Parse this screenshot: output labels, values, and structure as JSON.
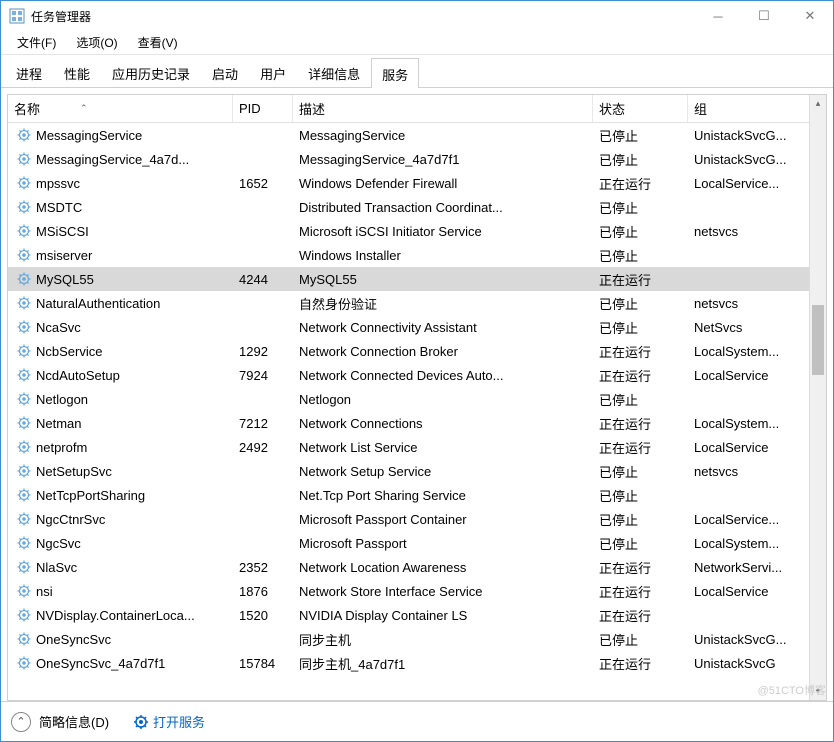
{
  "window": {
    "title": "任务管理器"
  },
  "menus": [
    "文件(F)",
    "选项(O)",
    "查看(V)"
  ],
  "tabs": [
    "进程",
    "性能",
    "应用历史记录",
    "启动",
    "用户",
    "详细信息",
    "服务"
  ],
  "activeTab": 6,
  "columns": {
    "name": "名称",
    "pid": "PID",
    "desc": "描述",
    "status": "状态",
    "group": "组"
  },
  "statusbar": {
    "fewer": "简略信息(D)",
    "open": "打开服务"
  },
  "watermark": "@51CTO博客",
  "selectedIndex": 6,
  "services": [
    {
      "name": "MessagingService",
      "pid": "",
      "desc": "MessagingService",
      "status": "已停止",
      "group": "UnistackSvcG..."
    },
    {
      "name": "MessagingService_4a7d...",
      "pid": "",
      "desc": "MessagingService_4a7d7f1",
      "status": "已停止",
      "group": "UnistackSvcG..."
    },
    {
      "name": "mpssvc",
      "pid": "1652",
      "desc": "Windows Defender Firewall",
      "status": "正在运行",
      "group": "LocalService..."
    },
    {
      "name": "MSDTC",
      "pid": "",
      "desc": "Distributed Transaction Coordinat...",
      "status": "已停止",
      "group": ""
    },
    {
      "name": "MSiSCSI",
      "pid": "",
      "desc": "Microsoft iSCSI Initiator Service",
      "status": "已停止",
      "group": "netsvcs"
    },
    {
      "name": "msiserver",
      "pid": "",
      "desc": "Windows Installer",
      "status": "已停止",
      "group": ""
    },
    {
      "name": "MySQL55",
      "pid": "4244",
      "desc": "MySQL55",
      "status": "正在运行",
      "group": ""
    },
    {
      "name": "NaturalAuthentication",
      "pid": "",
      "desc": "自然身份验证",
      "status": "已停止",
      "group": "netsvcs"
    },
    {
      "name": "NcaSvc",
      "pid": "",
      "desc": "Network Connectivity Assistant",
      "status": "已停止",
      "group": "NetSvcs"
    },
    {
      "name": "NcbService",
      "pid": "1292",
      "desc": "Network Connection Broker",
      "status": "正在运行",
      "group": "LocalSystem..."
    },
    {
      "name": "NcdAutoSetup",
      "pid": "7924",
      "desc": "Network Connected Devices Auto...",
      "status": "正在运行",
      "group": "LocalService"
    },
    {
      "name": "Netlogon",
      "pid": "",
      "desc": "Netlogon",
      "status": "已停止",
      "group": ""
    },
    {
      "name": "Netman",
      "pid": "7212",
      "desc": "Network Connections",
      "status": "正在运行",
      "group": "LocalSystem..."
    },
    {
      "name": "netprofm",
      "pid": "2492",
      "desc": "Network List Service",
      "status": "正在运行",
      "group": "LocalService"
    },
    {
      "name": "NetSetupSvc",
      "pid": "",
      "desc": "Network Setup Service",
      "status": "已停止",
      "group": "netsvcs"
    },
    {
      "name": "NetTcpPortSharing",
      "pid": "",
      "desc": "Net.Tcp Port Sharing Service",
      "status": "已停止",
      "group": ""
    },
    {
      "name": "NgcCtnrSvc",
      "pid": "",
      "desc": "Microsoft Passport Container",
      "status": "已停止",
      "group": "LocalService..."
    },
    {
      "name": "NgcSvc",
      "pid": "",
      "desc": "Microsoft Passport",
      "status": "已停止",
      "group": "LocalSystem..."
    },
    {
      "name": "NlaSvc",
      "pid": "2352",
      "desc": "Network Location Awareness",
      "status": "正在运行",
      "group": "NetworkServi..."
    },
    {
      "name": "nsi",
      "pid": "1876",
      "desc": "Network Store Interface Service",
      "status": "正在运行",
      "group": "LocalService"
    },
    {
      "name": "NVDisplay.ContainerLoca...",
      "pid": "1520",
      "desc": "NVIDIA Display Container LS",
      "status": "正在运行",
      "group": ""
    },
    {
      "name": "OneSyncSvc",
      "pid": "",
      "desc": "同步主机",
      "status": "已停止",
      "group": "UnistackSvcG..."
    },
    {
      "name": "OneSyncSvc_4a7d7f1",
      "pid": "15784",
      "desc": "同步主机_4a7d7f1",
      "status": "正在运行",
      "group": "UnistackSvcG"
    }
  ]
}
